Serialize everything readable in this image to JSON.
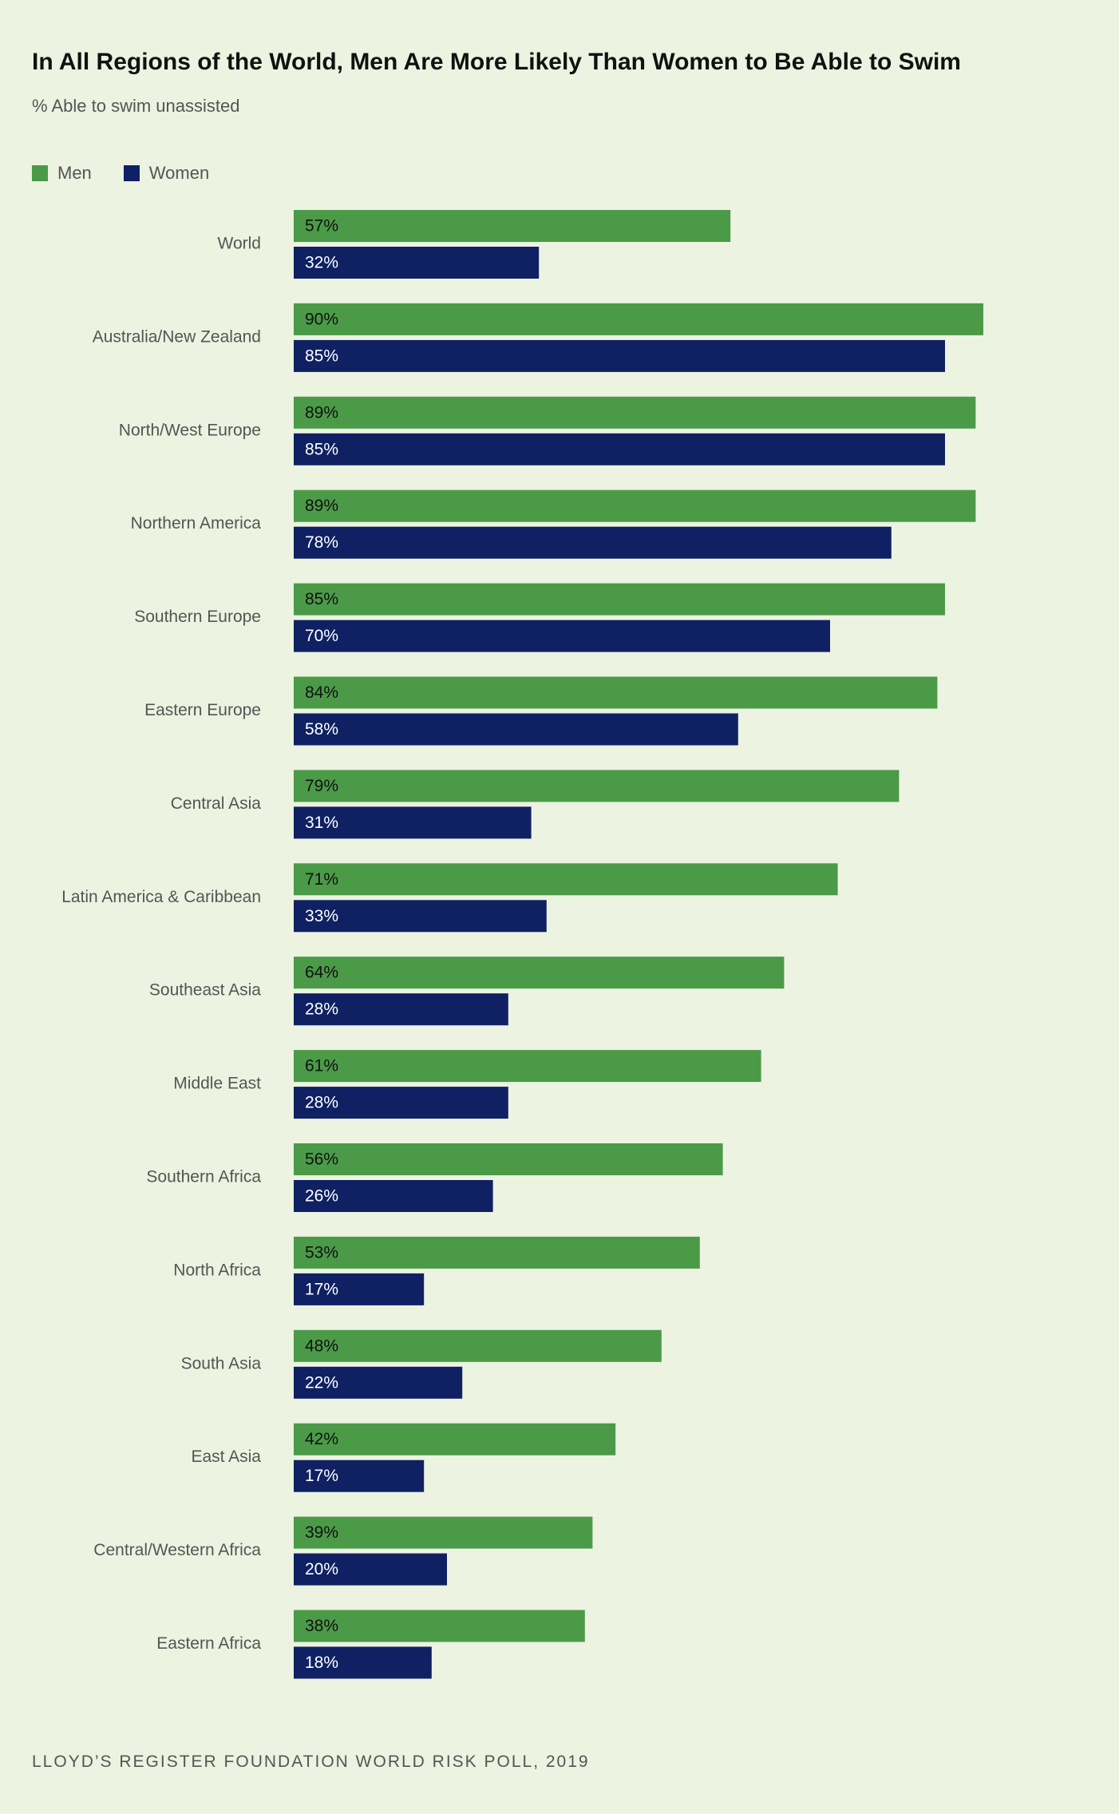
{
  "chart_data": {
    "type": "bar",
    "orientation": "horizontal",
    "title": "In All Regions of the World, Men Are More Likely Than Women to Be Able to Swim",
    "subtitle": "% Able to swim unassisted",
    "source": "LLOYD’S REGISTER FOUNDATION WORLD RISK POLL, 2019",
    "legend_position": "top-left",
    "grid": false,
    "xlim": [
      0,
      100
    ],
    "value_suffix": "%",
    "categories": [
      "World",
      "Australia/New Zealand",
      "North/West Europe",
      "Northern America",
      "Southern Europe",
      "Eastern Europe",
      "Central Asia",
      "Latin America & Caribbean",
      "Southeast Asia",
      "Middle East",
      "Southern Africa",
      "North Africa",
      "South Asia",
      "East Asia",
      "Central/Western Africa",
      "Eastern Africa"
    ],
    "series": [
      {
        "name": "Men",
        "color": "#4b9a48",
        "label_color": "#111111",
        "values": [
          57,
          90,
          89,
          89,
          85,
          84,
          79,
          71,
          64,
          61,
          56,
          53,
          48,
          42,
          39,
          38
        ]
      },
      {
        "name": "Women",
        "color": "#0f2163",
        "label_color": "#ffffff",
        "values": [
          32,
          85,
          85,
          78,
          70,
          58,
          31,
          33,
          28,
          28,
          26,
          17,
          22,
          17,
          20,
          18
        ]
      }
    ]
  }
}
